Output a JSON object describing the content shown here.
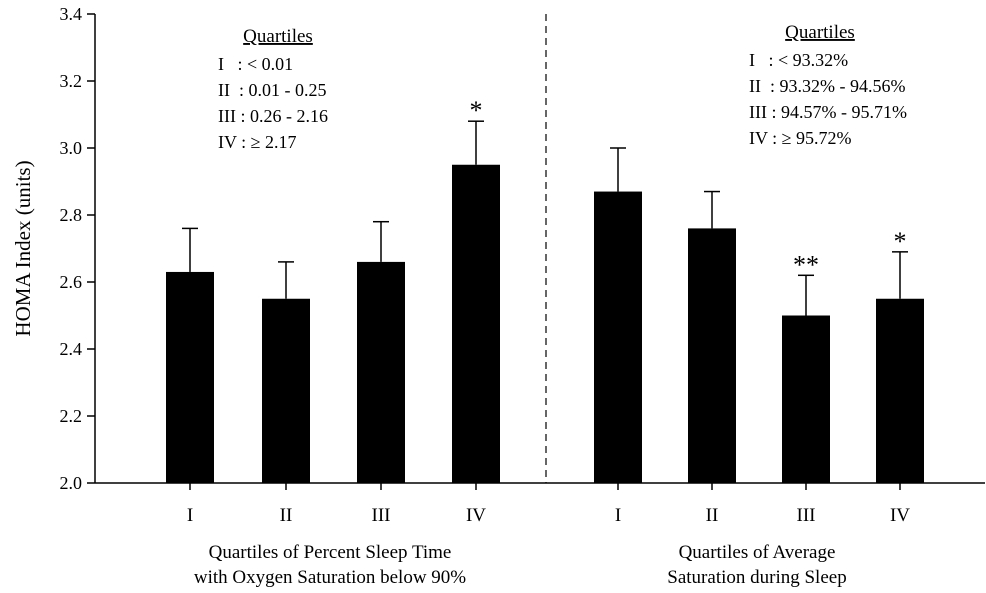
{
  "chart_data": {
    "type": "bar",
    "ylabel": "HOMA Index (units)",
    "ylim": [
      2.0,
      3.4
    ],
    "yticks": [
      "2.0",
      "2.2",
      "2.4",
      "2.6",
      "2.8",
      "3.0",
      "3.2",
      "3.4"
    ],
    "grid": false,
    "bar_color": "#000000",
    "panels": [
      {
        "xlabel_lines": [
          "Quartiles of Percent Sleep Time",
          "with Oxygen Saturation below 90%"
        ],
        "categories": [
          "I",
          "II",
          "III",
          "IV"
        ],
        "values": [
          2.63,
          2.55,
          2.66,
          2.95
        ],
        "error_upper": [
          2.76,
          2.66,
          2.78,
          3.08
        ],
        "significance": [
          "",
          "",
          "",
          "*"
        ],
        "legend": {
          "title": "Quartiles",
          "lines": [
            "I   : < 0.01",
            "II  : 0.01 - 0.25",
            "III : 0.26 - 2.16",
            "IV : ≥ 2.17"
          ]
        }
      },
      {
        "xlabel_lines": [
          "Quartiles of Average",
          "Saturation during Sleep"
        ],
        "categories": [
          "I",
          "II",
          "III",
          "IV"
        ],
        "values": [
          2.87,
          2.76,
          2.5,
          2.55
        ],
        "error_upper": [
          3.0,
          2.87,
          2.62,
          2.69
        ],
        "significance": [
          "",
          "",
          "**",
          "*"
        ],
        "legend": {
          "title": "Quartiles",
          "lines": [
            "I   : < 93.32%",
            "II  : 93.32% - 94.56%",
            "III : 94.57% - 95.71%",
            "IV : ≥ 95.72%"
          ]
        }
      }
    ]
  }
}
